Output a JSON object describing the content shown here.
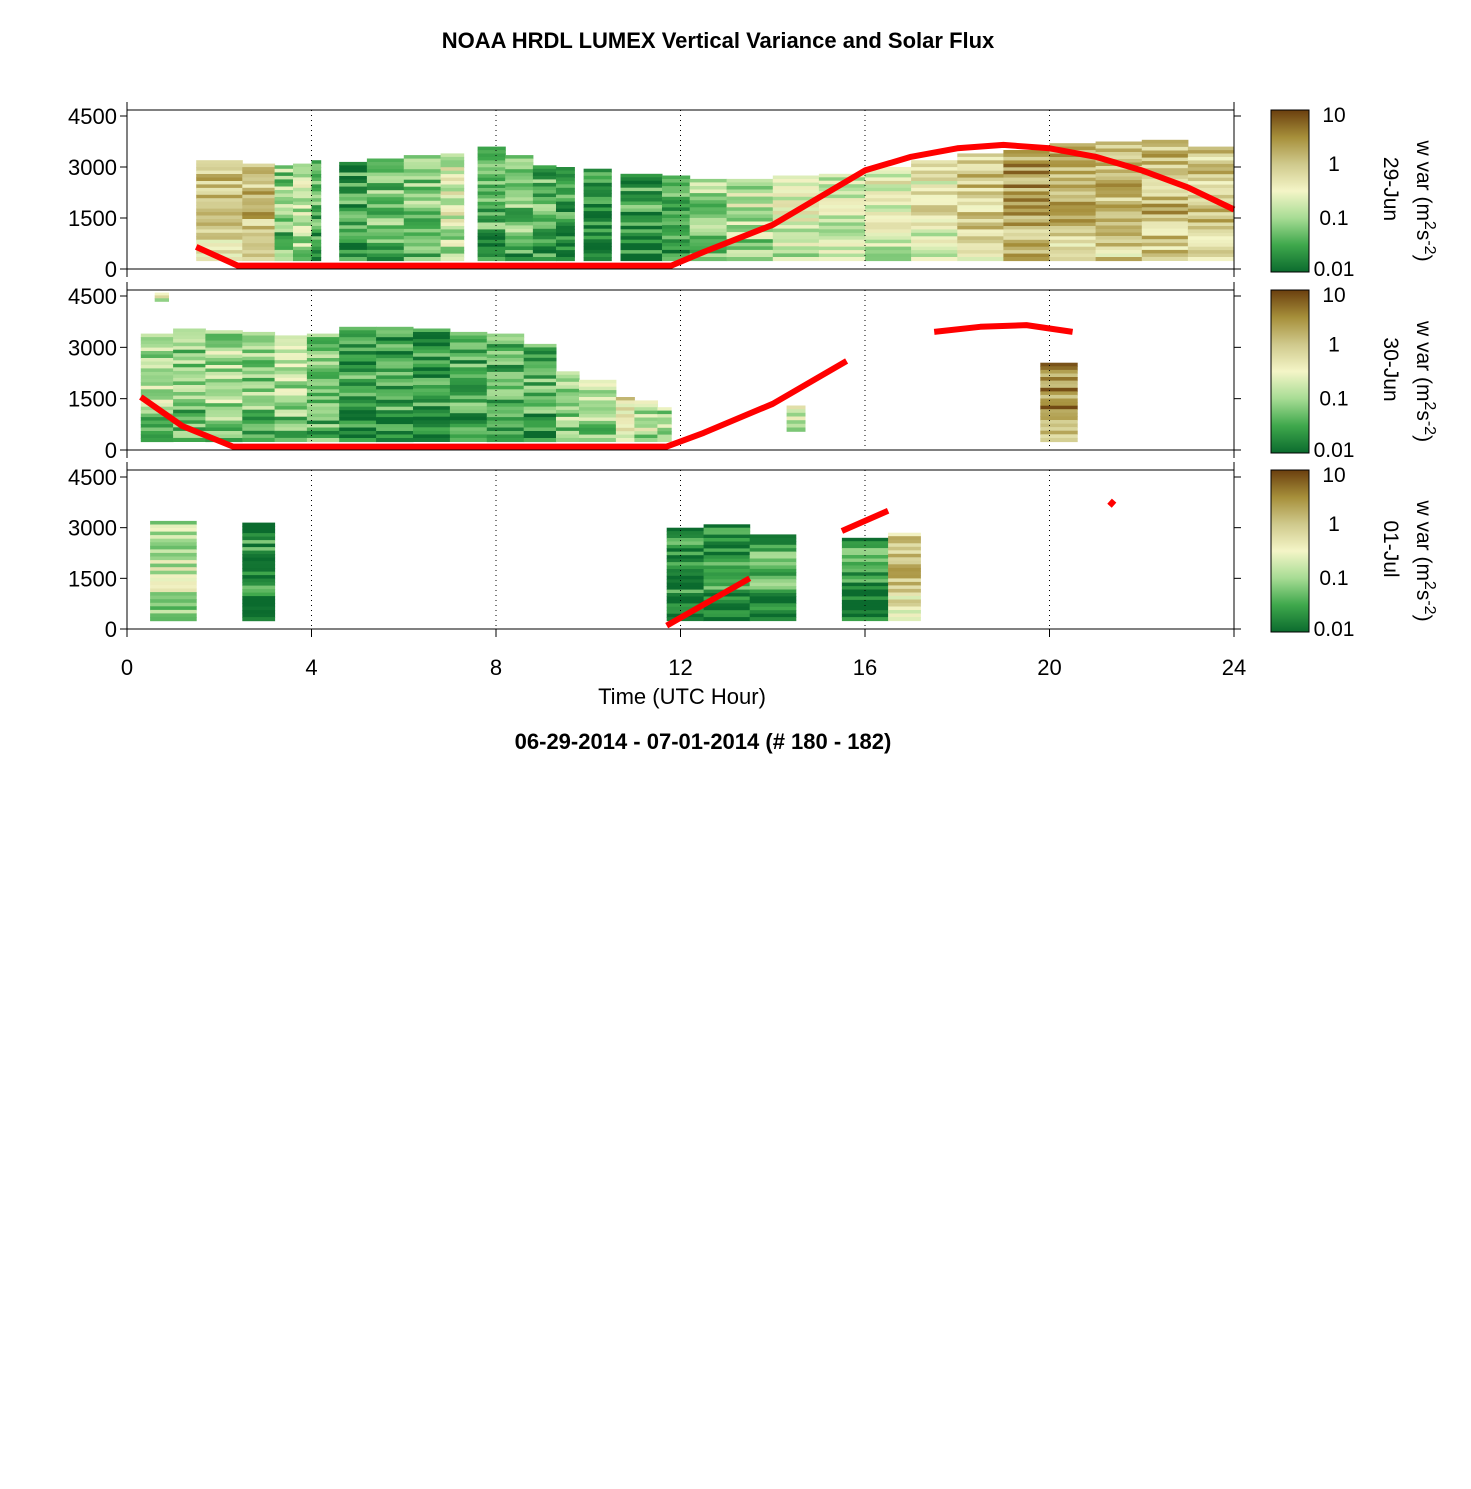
{
  "chart_data": {
    "type": "heatmap",
    "title": "NOAA HRDL LUMEX Vertical Variance and Solar Flux",
    "subtitle": "06-29-2014 - 07-01-2014   (# 180 - 182)",
    "xlabel": "Time (UTC Hour)",
    "xlim": [
      0,
      24
    ],
    "xticks": [
      "0",
      "4",
      "8",
      "12",
      "16",
      "20",
      "24"
    ],
    "ylim": [
      0,
      4500
    ],
    "yticks": [
      "0",
      "1500",
      "3000",
      "4500"
    ],
    "colorbar": {
      "label_prefix": "w var (m",
      "label_sup1": "2",
      "label_mid": "s",
      "label_sup2": "-2",
      "label_suffix": ")",
      "scale": "log",
      "ticks": [
        "0.01",
        "0.1",
        "1",
        "10"
      ],
      "colors": [
        "#0b6b2e",
        "#3fa84c",
        "#a7dc94",
        "#f4f5c7",
        "#cfc98c",
        "#a68f3a",
        "#6b3f0e"
      ]
    },
    "solar_line_color": "#ff0000",
    "panels": [
      {
        "day_label": "29-Jun",
        "columns": [
          {
            "x0": 1.5,
            "x1": 2.5,
            "top": 3200,
            "level": 0.7
          },
          {
            "x0": 2.5,
            "x1": 3.2,
            "top": 3100,
            "level": 0.7
          },
          {
            "x0": 3.2,
            "x1": 3.6,
            "top": 3050,
            "level": 0.3
          },
          {
            "x0": 3.6,
            "x1": 4.0,
            "top": 3100,
            "level": 0.4
          },
          {
            "x0": 4.0,
            "x1": 4.2,
            "top": 3200,
            "level": 0.2
          },
          {
            "x0": 4.6,
            "x1": 5.2,
            "top": 3150,
            "level": 0.15
          },
          {
            "x0": 5.2,
            "x1": 6.0,
            "top": 3250,
            "level": 0.25
          },
          {
            "x0": 6.0,
            "x1": 6.8,
            "top": 3350,
            "level": 0.3
          },
          {
            "x0": 6.8,
            "x1": 7.3,
            "top": 3400,
            "level": 0.45
          },
          {
            "x0": 7.6,
            "x1": 8.2,
            "top": 3600,
            "level": 0.2
          },
          {
            "x0": 8.2,
            "x1": 8.8,
            "top": 3350,
            "level": 0.25
          },
          {
            "x0": 8.8,
            "x1": 9.3,
            "top": 3050,
            "level": 0.2
          },
          {
            "x0": 9.3,
            "x1": 9.7,
            "top": 3000,
            "level": 0.12
          },
          {
            "x0": 9.9,
            "x1": 10.5,
            "top": 2950,
            "level": 0.1
          },
          {
            "x0": 10.7,
            "x1": 11.6,
            "top": 2800,
            "level": 0.15
          },
          {
            "x0": 11.6,
            "x1": 12.2,
            "top": 2750,
            "level": 0.2
          },
          {
            "x0": 12.2,
            "x1": 13.0,
            "top": 2650,
            "level": 0.3
          },
          {
            "x0": 13.0,
            "x1": 14.0,
            "top": 2650,
            "level": 0.4
          },
          {
            "x0": 14.0,
            "x1": 15.0,
            "top": 2750,
            "level": 0.45
          },
          {
            "x0": 15.0,
            "x1": 16.0,
            "top": 2800,
            "level": 0.45
          },
          {
            "x0": 16.0,
            "x1": 17.0,
            "top": 3000,
            "level": 0.5
          },
          {
            "x0": 17.0,
            "x1": 18.0,
            "top": 3200,
            "level": 0.55
          },
          {
            "x0": 18.0,
            "x1": 19.0,
            "top": 3400,
            "level": 0.65
          },
          {
            "x0": 19.0,
            "x1": 20.0,
            "top": 3500,
            "level": 0.8
          },
          {
            "x0": 20.0,
            "x1": 21.0,
            "top": 3700,
            "level": 0.7
          },
          {
            "x0": 21.0,
            "x1": 22.0,
            "top": 3750,
            "level": 0.7
          },
          {
            "x0": 22.0,
            "x1": 23.0,
            "top": 3800,
            "level": 0.72
          },
          {
            "x0": 23.0,
            "x1": 24.0,
            "top": 3600,
            "level": 0.65
          }
        ],
        "solar": [
          {
            "x": [
              1.5,
              2.4,
              11.8,
              12.5,
              14,
              16,
              17,
              18,
              19,
              20,
              21,
              22,
              23,
              24
            ],
            "y": [
              650,
              100,
              100,
              500,
              1300,
              2900,
              3300,
              3550,
              3650,
              3550,
              3300,
              2900,
              2400,
              1750
            ]
          }
        ]
      },
      {
        "day_label": "30-Jun",
        "columns": [
          {
            "x0": 0.6,
            "x1": 0.9,
            "top": 4600,
            "bottom": 4350,
            "level": 0.45
          },
          {
            "x0": 0.3,
            "x1": 1.0,
            "top": 3400,
            "level": 0.35
          },
          {
            "x0": 1.0,
            "x1": 1.7,
            "top": 3550,
            "level": 0.3
          },
          {
            "x0": 1.7,
            "x1": 2.5,
            "top": 3500,
            "level": 0.35
          },
          {
            "x0": 2.5,
            "x1": 3.2,
            "top": 3450,
            "level": 0.3
          },
          {
            "x0": 3.2,
            "x1": 3.9,
            "top": 3350,
            "level": 0.35
          },
          {
            "x0": 3.9,
            "x1": 4.6,
            "top": 3400,
            "level": 0.3
          },
          {
            "x0": 4.6,
            "x1": 5.4,
            "top": 3600,
            "level": 0.15
          },
          {
            "x0": 5.4,
            "x1": 6.2,
            "top": 3600,
            "level": 0.15
          },
          {
            "x0": 6.2,
            "x1": 7.0,
            "top": 3550,
            "level": 0.12
          },
          {
            "x0": 7.0,
            "x1": 7.8,
            "top": 3450,
            "level": 0.18
          },
          {
            "x0": 7.8,
            "x1": 8.6,
            "top": 3400,
            "level": 0.2
          },
          {
            "x0": 8.6,
            "x1": 9.3,
            "top": 3100,
            "level": 0.2
          },
          {
            "x0": 9.3,
            "x1": 9.8,
            "top": 2300,
            "level": 0.3
          },
          {
            "x0": 9.8,
            "x1": 10.6,
            "top": 2050,
            "level": 0.35
          },
          {
            "x0": 10.6,
            "x1": 11.0,
            "top": 1550,
            "level": 0.6
          },
          {
            "x0": 11.0,
            "x1": 11.5,
            "top": 1450,
            "level": 0.4
          },
          {
            "x0": 11.5,
            "x1": 11.8,
            "top": 1250,
            "level": 0.35
          },
          {
            "x0": 14.3,
            "x1": 14.7,
            "top": 1300,
            "bottom": 550,
            "level": 0.45
          },
          {
            "x0": 19.8,
            "x1": 20.6,
            "top": 2550,
            "level": 0.82
          }
        ],
        "solar": [
          {
            "x": [
              0.3,
              1.2,
              2.3,
              11.7,
              12.5,
              14,
              15.6
            ],
            "y": [
              1550,
              700,
              100,
              100,
              500,
              1350,
              2600
            ]
          },
          {
            "x": [
              17.5,
              18.5,
              19.5,
              20.5
            ],
            "y": [
              3450,
              3600,
              3650,
              3450
            ]
          }
        ]
      },
      {
        "day_label": "01-Jul",
        "columns": [
          {
            "x0": 0.5,
            "x1": 1.5,
            "top": 3200,
            "level": 0.4
          },
          {
            "x0": 2.5,
            "x1": 3.2,
            "top": 3150,
            "level": 0.12
          },
          {
            "x0": 11.7,
            "x1": 12.5,
            "top": 3000,
            "level": 0.1
          },
          {
            "x0": 12.5,
            "x1": 13.5,
            "top": 3100,
            "level": 0.12
          },
          {
            "x0": 13.5,
            "x1": 14.5,
            "top": 2800,
            "level": 0.18
          },
          {
            "x0": 15.5,
            "x1": 16.5,
            "top": 2700,
            "level": 0.15
          },
          {
            "x0": 16.5,
            "x1": 17.2,
            "top": 2850,
            "level": 0.65
          }
        ],
        "solar": [
          {
            "x": [
              11.7,
              13.5
            ],
            "y": [
              100,
              1500
            ]
          },
          {
            "x": [
              15.5,
              16.5
            ],
            "y": [
              2900,
              3500
            ]
          },
          {
            "x": [
              21.3,
              21.4
            ],
            "y": [
              3650,
              3800
            ]
          }
        ]
      }
    ]
  }
}
